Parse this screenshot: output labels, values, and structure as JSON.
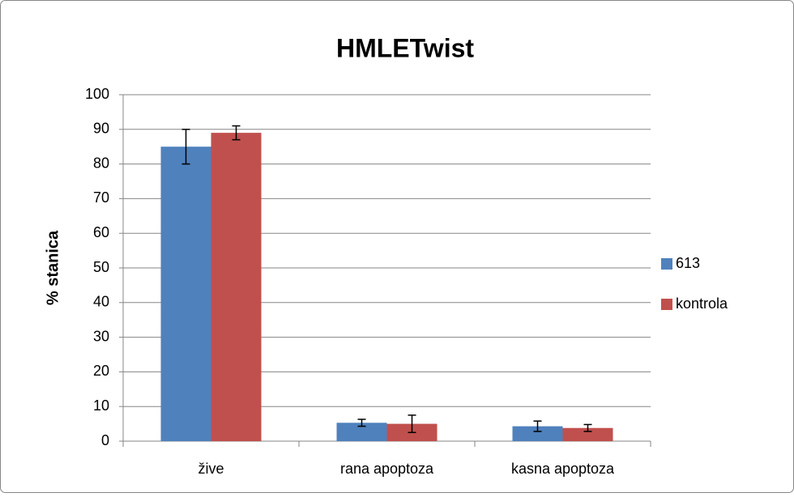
{
  "chart_data": {
    "type": "bar",
    "title": "HMLETwist",
    "y_label": "% stanica",
    "categories": [
      "žive",
      "rana apoptoza",
      "kasna apoptoza"
    ],
    "series": [
      {
        "name": "613",
        "color": "#4f81bd",
        "values": [
          85,
          5.3,
          4.3
        ],
        "errors": [
          5,
          1,
          1.5
        ]
      },
      {
        "name": "kontrola",
        "color": "#c0504d",
        "values": [
          89,
          5,
          3.8
        ],
        "errors": [
          2,
          2.5,
          1
        ]
      }
    ],
    "ylim": [
      0,
      100
    ],
    "yticks": [
      0,
      10,
      20,
      30,
      40,
      50,
      60,
      70,
      80,
      90,
      100
    ],
    "grid": true,
    "legend": "right"
  }
}
